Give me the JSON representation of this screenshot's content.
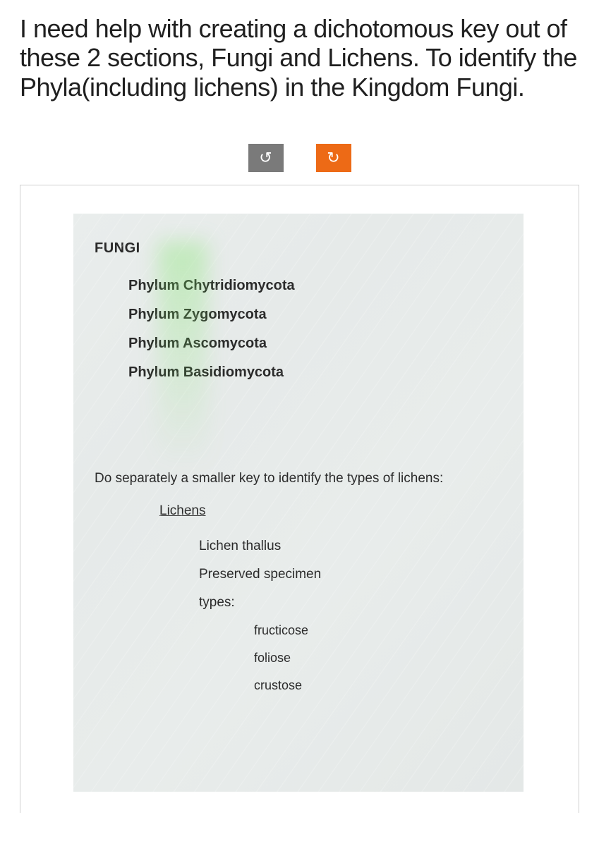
{
  "question": "I need help with creating a dichotomous key out of these 2 sections, Fungi and Lichens. To identify the Phyla(including lichens) in the Kingdom Fungi.",
  "controls": {
    "undo_glyph": "↺",
    "redo_glyph": "↻"
  },
  "screen": {
    "section_title": "FUNGI",
    "phyla": [
      "Phylum Chytridiomycota",
      "Phylum Zygomycota",
      "Phylum Ascomycota",
      "Phylum Basidiomycota"
    ],
    "instruction": "Do separately a smaller key to identify the types of lichens:",
    "lichens_heading": "Lichens",
    "lichen_lines": [
      "Lichen thallus",
      "Preserved specimen",
      "types:"
    ],
    "lichen_types": [
      "fructicose",
      "foliose",
      "crustose"
    ]
  },
  "colors": {
    "undo_bg": "#7a7a7a",
    "redo_bg": "#ed6a16",
    "text": "#202020",
    "screen_bg": "#e8eceb"
  }
}
